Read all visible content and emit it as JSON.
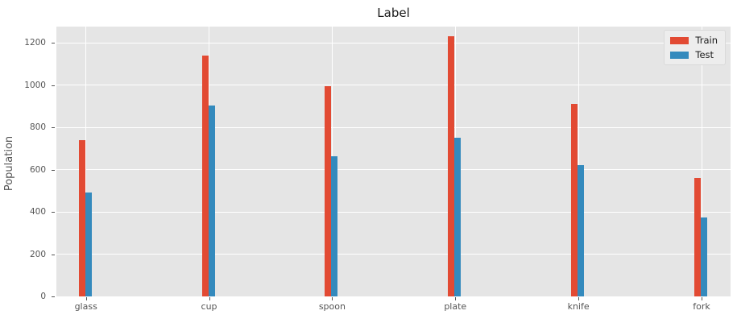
{
  "chart_data": {
    "type": "bar",
    "title": "Label",
    "xlabel": "",
    "ylabel": "Population",
    "categories": [
      "glass",
      "cup",
      "spoon",
      "plate",
      "knife",
      "fork"
    ],
    "series": [
      {
        "name": "Train",
        "color": "#E24A33",
        "values": [
          740,
          1140,
          995,
          1230,
          910,
          560
        ]
      },
      {
        "name": "Test",
        "color": "#348ABD",
        "values": [
          490,
          905,
          665,
          750,
          620,
          375
        ]
      }
    ],
    "yticks": [
      0,
      200,
      400,
      600,
      800,
      1000,
      1200
    ],
    "ylim": [
      0,
      1277
    ],
    "grid": true,
    "legend_position": "upper right",
    "style": {
      "plot_background": "#E5E5E5",
      "figure_background": "#FFFFFF",
      "grid_color": "#FFFFFF",
      "tick_text_color": "#555555",
      "title_color": "#1A1A1A"
    }
  }
}
